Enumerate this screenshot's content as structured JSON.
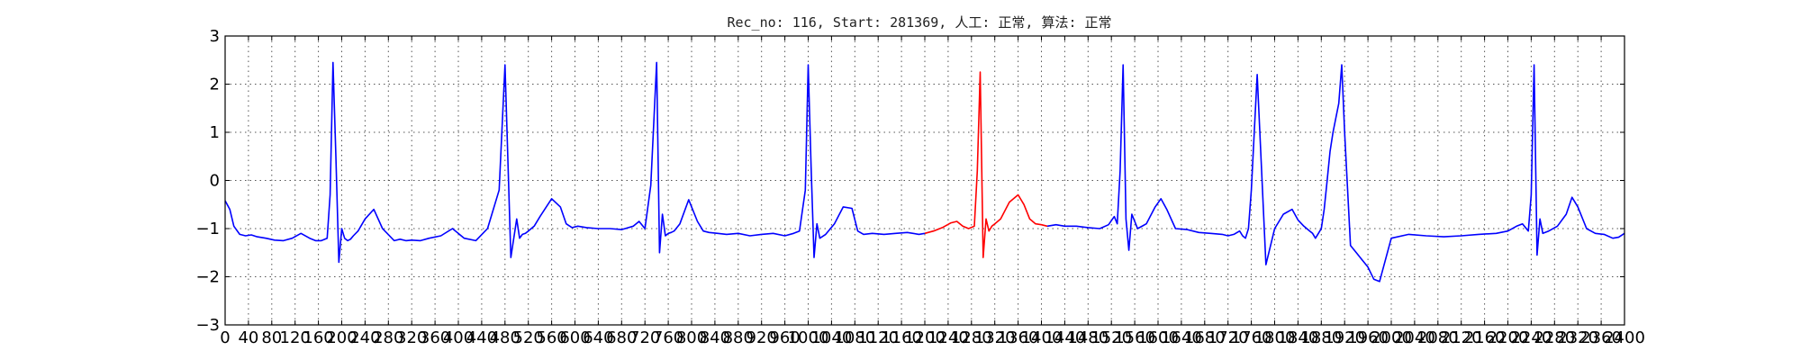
{
  "chart_data": {
    "type": "line",
    "title": "Rec_no: 116, Start: 281369, 人工: 正常, 算法: 正常",
    "xlabel": "",
    "ylabel": "",
    "xlim": [
      0,
      2400
    ],
    "ylim": [
      -3,
      3
    ],
    "grid": true,
    "x_ticks": [
      0,
      40,
      80,
      120,
      160,
      200,
      240,
      280,
      320,
      360,
      400,
      440,
      480,
      520,
      560,
      600,
      640,
      680,
      720,
      760,
      800,
      840,
      880,
      920,
      960,
      1000,
      1040,
      1080,
      1120,
      1160,
      1200,
      1240,
      1280,
      1320,
      1360,
      1400,
      1440,
      1480,
      1520,
      1560,
      1600,
      1640,
      1680,
      1720,
      1760,
      1800,
      1840,
      1880,
      1920,
      1960,
      2000,
      2040,
      2080,
      2120,
      2160,
      2200,
      2240,
      2280,
      2320,
      2360,
      2400
    ],
    "x_tick_labels": [
      "0",
      "40",
      "80",
      "120",
      "160",
      "200",
      "240",
      "280",
      "320",
      "360",
      "400",
      "440",
      "480",
      "520",
      "560",
      "600",
      "640",
      "680",
      "720",
      "760",
      "800",
      "840",
      "880",
      "920",
      "960",
      "1000",
      "1040",
      "1080",
      "1120",
      "1160",
      "1200",
      "1240",
      "1280",
      "1320",
      "1360",
      "1400",
      "1440",
      "1480",
      "1520",
      "1560",
      "1600",
      "1640",
      "1680",
      "1720",
      "1760",
      "1800",
      "1840",
      "1880",
      "1920",
      "1960",
      "2000",
      "2040",
      "2080",
      "2120",
      "2160",
      "2200",
      "2240",
      "2280",
      "2320",
      "2360",
      "2400"
    ],
    "y_ticks": [
      3,
      2,
      1,
      0,
      -1,
      -2,
      -3
    ],
    "y_tick_labels": [
      "3",
      "2",
      "1",
      "0",
      "−1",
      "−2",
      "−3"
    ],
    "series": [
      {
        "color": "#0000ff",
        "x": [
          0,
          8,
          15,
          25,
          35,
          45,
          55,
          70,
          85,
          100,
          115,
          130,
          145,
          155,
          165,
          175,
          180,
          185,
          190,
          195,
          200,
          205,
          210,
          215,
          220,
          228,
          240,
          255,
          270,
          290,
          300,
          310,
          320,
          335,
          350,
          370,
          390,
          410,
          430,
          450,
          470,
          480,
          490,
          500,
          505,
          510,
          515,
          520,
          525,
          530,
          540,
          560,
          575,
          585,
          595,
          605,
          620,
          640,
          660,
          680,
          700,
          710,
          720,
          730,
          740,
          745,
          750,
          755,
          760,
          765,
          770,
          780,
          795,
          810,
          820,
          830,
          845,
          860,
          880,
          900,
          920,
          940,
          960,
          975,
          985,
          995,
          1000,
          1005,
          1010,
          1015,
          1020,
          1030,
          1045,
          1060,
          1075,
          1085,
          1095,
          1110,
          1130,
          1150,
          1170,
          1190,
          1200
        ],
        "y": [
          -0.42,
          -0.6,
          -0.95,
          -1.12,
          -1.15,
          -1.13,
          -1.17,
          -1.2,
          -1.24,
          -1.25,
          -1.2,
          -1.1,
          -1.2,
          -1.25,
          -1.25,
          -1.2,
          -0.3,
          2.45,
          0.5,
          -1.7,
          -1.0,
          -1.2,
          -1.25,
          -1.22,
          -1.15,
          -1.05,
          -0.8,
          -0.6,
          -1.0,
          -1.25,
          -1.22,
          -1.25,
          -1.24,
          -1.25,
          -1.2,
          -1.15,
          -1.0,
          -1.2,
          -1.25,
          -1.0,
          -0.2,
          2.4,
          -1.6,
          -0.8,
          -1.2,
          -1.12,
          -1.1,
          -1.05,
          -1.0,
          -0.95,
          -0.75,
          -0.38,
          -0.55,
          -0.9,
          -0.98,
          -0.95,
          -0.98,
          -1.0,
          -1.0,
          -1.02,
          -0.95,
          -0.85,
          -1.0,
          -0.1,
          2.45,
          -1.5,
          -0.7,
          -1.15,
          -1.1,
          -1.08,
          -1.05,
          -0.9,
          -0.4,
          -0.85,
          -1.05,
          -1.08,
          -1.1,
          -1.12,
          -1.1,
          -1.15,
          -1.12,
          -1.1,
          -1.15,
          -1.1,
          -1.05,
          -0.2,
          2.4,
          0.3,
          -1.6,
          -0.9,
          -1.2,
          -1.12,
          -0.9,
          -0.55,
          -0.58,
          -1.05,
          -1.12,
          -1.1,
          -1.12,
          -1.1,
          -1.08,
          -1.12,
          -1.1
        ]
      },
      {
        "color": "#ff0000",
        "x": [
          1200,
          1215,
          1230,
          1245,
          1255,
          1265,
          1275,
          1285,
          1290,
          1295,
          1300,
          1305,
          1310,
          1315,
          1320,
          1330,
          1345,
          1360,
          1370,
          1380,
          1390,
          1400,
          1410
        ],
        "y": [
          -1.1,
          -1.05,
          -0.98,
          -0.88,
          -0.85,
          -0.95,
          -1.0,
          -0.95,
          0.2,
          2.25,
          -1.6,
          -0.8,
          -1.05,
          -0.95,
          -0.9,
          -0.8,
          -0.45,
          -0.3,
          -0.5,
          -0.8,
          -0.9,
          -0.92,
          -0.95
        ]
      },
      {
        "color": "#0000ff",
        "x": [
          1410,
          1425,
          1440,
          1460,
          1480,
          1500,
          1515,
          1525,
          1530,
          1535,
          1540,
          1545,
          1550,
          1555,
          1565,
          1580,
          1595,
          1605,
          1615,
          1630,
          1650,
          1670,
          1690,
          1710,
          1720,
          1730,
          1740,
          1745,
          1750,
          1755,
          1760,
          1770,
          1785,
          1800,
          1815,
          1830,
          1840,
          1850,
          1860,
          1865,
          1870,
          1875,
          1880,
          1885,
          1890,
          1895,
          1900,
          1905,
          1910,
          1915,
          1920,
          1930,
          1940,
          1950,
          1960,
          1970,
          1980,
          2000,
          2030,
          2060,
          2090,
          2120,
          2150,
          2180,
          2200,
          2215,
          2225,
          2235,
          2240,
          2245,
          2250,
          2255,
          2260,
          2270,
          2285,
          2300,
          2310,
          2320,
          2335,
          2350,
          2365,
          2380,
          2390,
          2400
        ],
        "y": [
          -0.95,
          -0.92,
          -0.95,
          -0.95,
          -0.98,
          -1.0,
          -0.92,
          -0.75,
          -0.9,
          0.2,
          2.4,
          -0.8,
          -1.45,
          -0.7,
          -1.0,
          -0.9,
          -0.55,
          -0.38,
          -0.6,
          -1.0,
          -1.02,
          -1.08,
          -1.1,
          -1.12,
          -1.15,
          -1.12,
          -1.05,
          -1.15,
          -1.2,
          -1.0,
          -0.2,
          2.2,
          -1.75,
          -1.0,
          -0.7,
          -0.6,
          -0.82,
          -0.95,
          -1.05,
          -1.1,
          -1.2,
          -1.1,
          -1.0,
          -0.6,
          0.0,
          0.6,
          1.0,
          1.3,
          1.6,
          2.4,
          1.0,
          -1.35,
          -1.5,
          -1.65,
          -1.8,
          -2.05,
          -2.1,
          -1.2,
          -1.12,
          -1.15,
          -1.17,
          -1.15,
          -1.12,
          -1.1,
          -1.05,
          -0.95,
          -0.9,
          -1.05,
          -0.3,
          2.4,
          -1.55,
          -0.8,
          -1.1,
          -1.05,
          -0.95,
          -0.7,
          -0.35,
          -0.55,
          -1.0,
          -1.1,
          -1.12,
          -1.2,
          -1.18,
          -1.1
        ]
      }
    ]
  }
}
